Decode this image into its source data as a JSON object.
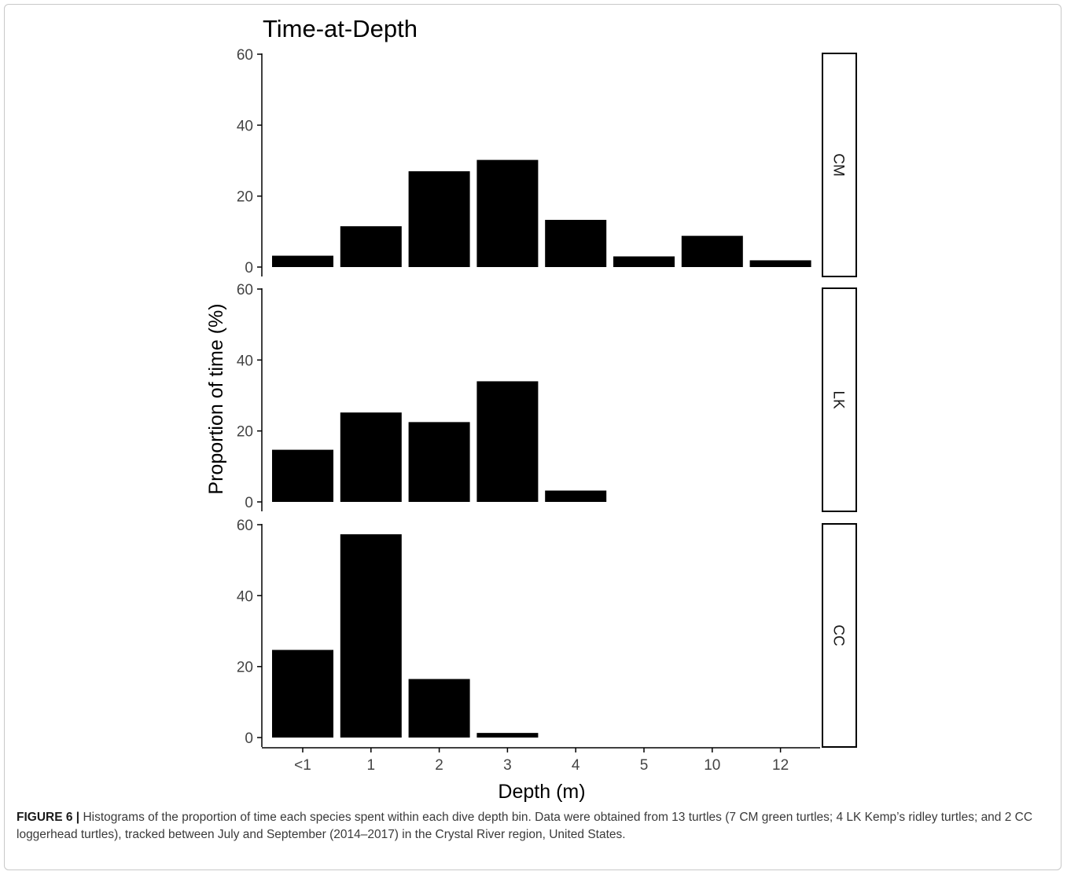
{
  "chart_data": {
    "type": "bar",
    "title": "Time-at-Depth",
    "xlabel": "Depth (m)",
    "ylabel": "Proportion of time (%)",
    "categories": [
      "<1",
      "1",
      "2",
      "3",
      "4",
      "5",
      "10",
      "12"
    ],
    "ylim": [
      0,
      60
    ],
    "yticks": [
      0,
      20,
      40,
      60
    ],
    "bar_color": "#000000",
    "panels": [
      {
        "name": "CM",
        "values": [
          3.2,
          11.5,
          27,
          30.2,
          13.3,
          3,
          8.8,
          1.9
        ]
      },
      {
        "name": "LK",
        "values": [
          14.7,
          25.2,
          22.5,
          34,
          3.2,
          0,
          0,
          0
        ]
      },
      {
        "name": "CC",
        "values": [
          24.7,
          57.3,
          16.5,
          1.3,
          0,
          0,
          0,
          0
        ]
      }
    ]
  },
  "caption": {
    "label": "FIGURE 6 |",
    "text": " Histograms of the proportion of time each species spent within each dive depth bin. Data were obtained from 13 turtles (7 CM green turtles; 4 LK Kemp’s ridley turtles; and 2 CC loggerhead turtles), tracked between July and September (2014–2017) in the Crystal River region, United States."
  }
}
